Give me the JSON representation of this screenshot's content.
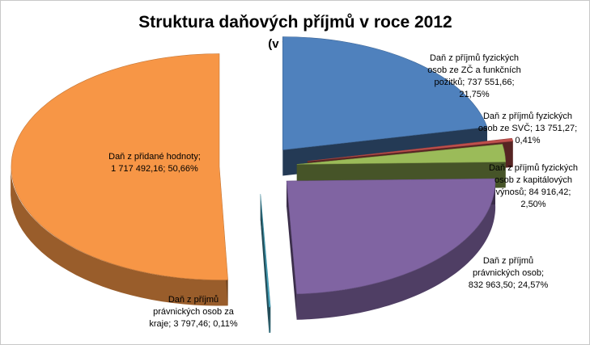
{
  "chart_data": {
    "type": "pie",
    "title": "Struktura daňových příjmů v roce 2012",
    "subtitle": "(v tis. Kč)",
    "exploded_3d": true,
    "legend": "none",
    "slices": [
      {
        "name": "Daň z příjmů fyzických osob ze ZČ a funkčních požitků",
        "value": 737551.66,
        "percent": 21.75,
        "color": "#4f81bd",
        "label_lines": [
          "Daň z příjmů fyzických",
          "osob ze ZČ a funkčních",
          "požitků; 737 551,66;",
          "21,75%"
        ]
      },
      {
        "name": "Daň z příjmů fyzických osob ze SVČ",
        "value": 13751.27,
        "percent": 0.41,
        "color": "#c0504d",
        "label_lines": [
          "Daň z příjmů fyzických",
          "osob ze SVČ; 13 751,27;",
          "0,41%"
        ]
      },
      {
        "name": "Daň z příjmů fyzických osob z kapitálových výnosů",
        "value": 84916.42,
        "percent": 2.5,
        "color": "#9bbb59",
        "label_lines": [
          "Daň z příjmů fyzických",
          "osob z kapitálových",
          "výnosů; 84 916,42;",
          "2,50%"
        ]
      },
      {
        "name": "Daň z příjmů právnických osob",
        "value": 832963.5,
        "percent": 24.57,
        "color": "#8064a2",
        "label_lines": [
          "Daň z příjmů",
          "právnických osob;",
          "832 963,50; 24,57%"
        ]
      },
      {
        "name": "Daň z příjmů právnických osob za kraje",
        "value": 3797.46,
        "percent": 0.11,
        "color": "#4bacc6",
        "label_lines": [
          "Daň z příjmů",
          "právnických osob za",
          "kraje; 3 797,46; 0,11%"
        ]
      },
      {
        "name": "Daň z přidané hodnoty",
        "value": 1717492.16,
        "percent": 50.66,
        "color": "#f79646",
        "label_lines": [
          "Daň z přidané hodnoty;",
          "1 717 492,16; 50,66%"
        ]
      }
    ]
  }
}
